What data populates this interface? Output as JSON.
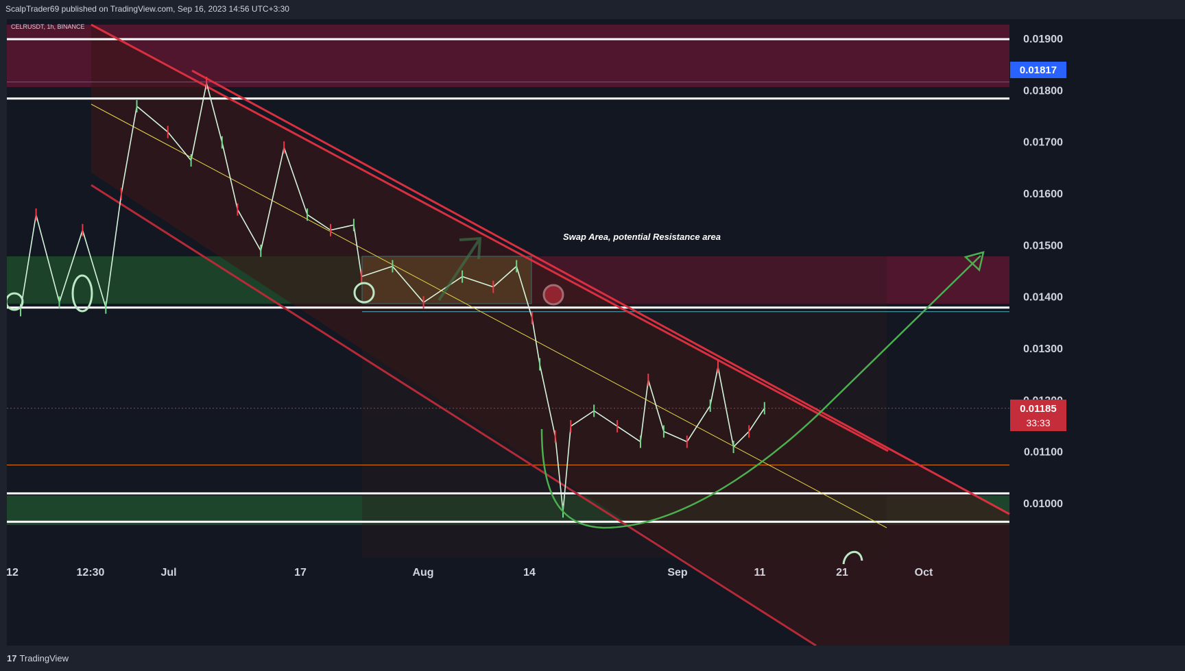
{
  "header": {
    "published": "ScalpTrader69 published on TradingView.com, Sep 16, 2023 14:56 UTC+3:30"
  },
  "footer": {
    "brand": "TradingView",
    "brand_mark": "17"
  },
  "colors": {
    "background": "#131722",
    "panel": "#1e222d",
    "resistance_zone": "#5c1630",
    "support_zone": "#1f4a2c",
    "channel_line": "#d9303f",
    "channel_fill": "#3a1518",
    "midline": "#e6d64a",
    "forecast": "#4caf50",
    "current_price_tag": "#c62d3a",
    "prev_high_tag": "#2962ff",
    "level_line": "#ffffff",
    "orange_line": "#f57c00"
  },
  "chart_data": {
    "type": "candlestick",
    "symbol_label": "CELRUSDT, 1h, BINANCE",
    "annotation": "Swap Area, potential Resistance area",
    "x_tick_labels": [
      "12",
      "12:30",
      "Jul",
      "17",
      "Aug",
      "14",
      "Sep",
      "11",
      "21",
      "Oct"
    ],
    "y_tick_labels": [
      "0.01900",
      "0.01800",
      "0.01700",
      "0.01600",
      "0.01500",
      "0.01400",
      "0.01300",
      "0.01200",
      "0.01100",
      "0.01000"
    ],
    "ylim": [
      0.00895,
      0.01928
    ],
    "current_price": {
      "value": "0.01185",
      "countdown": "33:33"
    },
    "prev_high_marker": {
      "value": "0.01817"
    },
    "horizontal_levels": [
      0.019,
      0.01785,
      0.0138,
      0.01075,
      0.0102,
      0.00965
    ],
    "resistance_zone_top": [
      0.019,
      0.01785
    ],
    "swap_zone": [
      0.0147,
      0.0138
    ],
    "support_zone_bottom": [
      0.0102,
      0.00965
    ],
    "price_path": [
      [
        "Jun 12",
        0.01375
      ],
      [
        "Jun 14",
        0.0156
      ],
      [
        "Jun 17",
        0.0139
      ],
      [
        "Jun 20",
        0.0153
      ],
      [
        "Jun 23",
        0.0138
      ],
      [
        "Jun 25",
        0.016
      ],
      [
        "Jun 27",
        0.0177
      ],
      [
        "Jul 1",
        0.0172
      ],
      [
        "Jul 4",
        0.01665
      ],
      [
        "Jul 6",
        0.01815
      ],
      [
        "Jul 8",
        0.017
      ],
      [
        "Jul 10",
        0.0157
      ],
      [
        "Jul 13",
        0.0149
      ],
      [
        "Jul 16",
        0.0169
      ],
      [
        "Jul 19",
        0.0156
      ],
      [
        "Jul 22",
        0.0153
      ],
      [
        "Jul 25",
        0.0154
      ],
      [
        "Jul 26",
        0.0144
      ],
      [
        "Jul 30",
        0.0146
      ],
      [
        "Aug 3",
        0.0139
      ],
      [
        "Aug 8",
        0.0144
      ],
      [
        "Aug 12",
        0.0142
      ],
      [
        "Aug 15",
        0.0146
      ],
      [
        "Aug 17",
        0.0136
      ],
      [
        "Aug 18",
        0.0127
      ],
      [
        "Aug 20",
        0.0113
      ],
      [
        "Aug 21",
        0.00985
      ],
      [
        "Aug 22",
        0.0115
      ],
      [
        "Aug 25",
        0.0118
      ],
      [
        "Aug 28",
        0.0115
      ],
      [
        "Aug 31",
        0.0112
      ],
      [
        "Sep 1",
        0.0124
      ],
      [
        "Sep 3",
        0.0114
      ],
      [
        "Sep 6",
        0.0112
      ],
      [
        "Sep 9",
        0.0119
      ],
      [
        "Sep 10",
        0.01265
      ],
      [
        "Sep 12",
        0.0111
      ],
      [
        "Sep 14",
        0.0114
      ],
      [
        "Sep 16",
        0.01185
      ]
    ]
  }
}
